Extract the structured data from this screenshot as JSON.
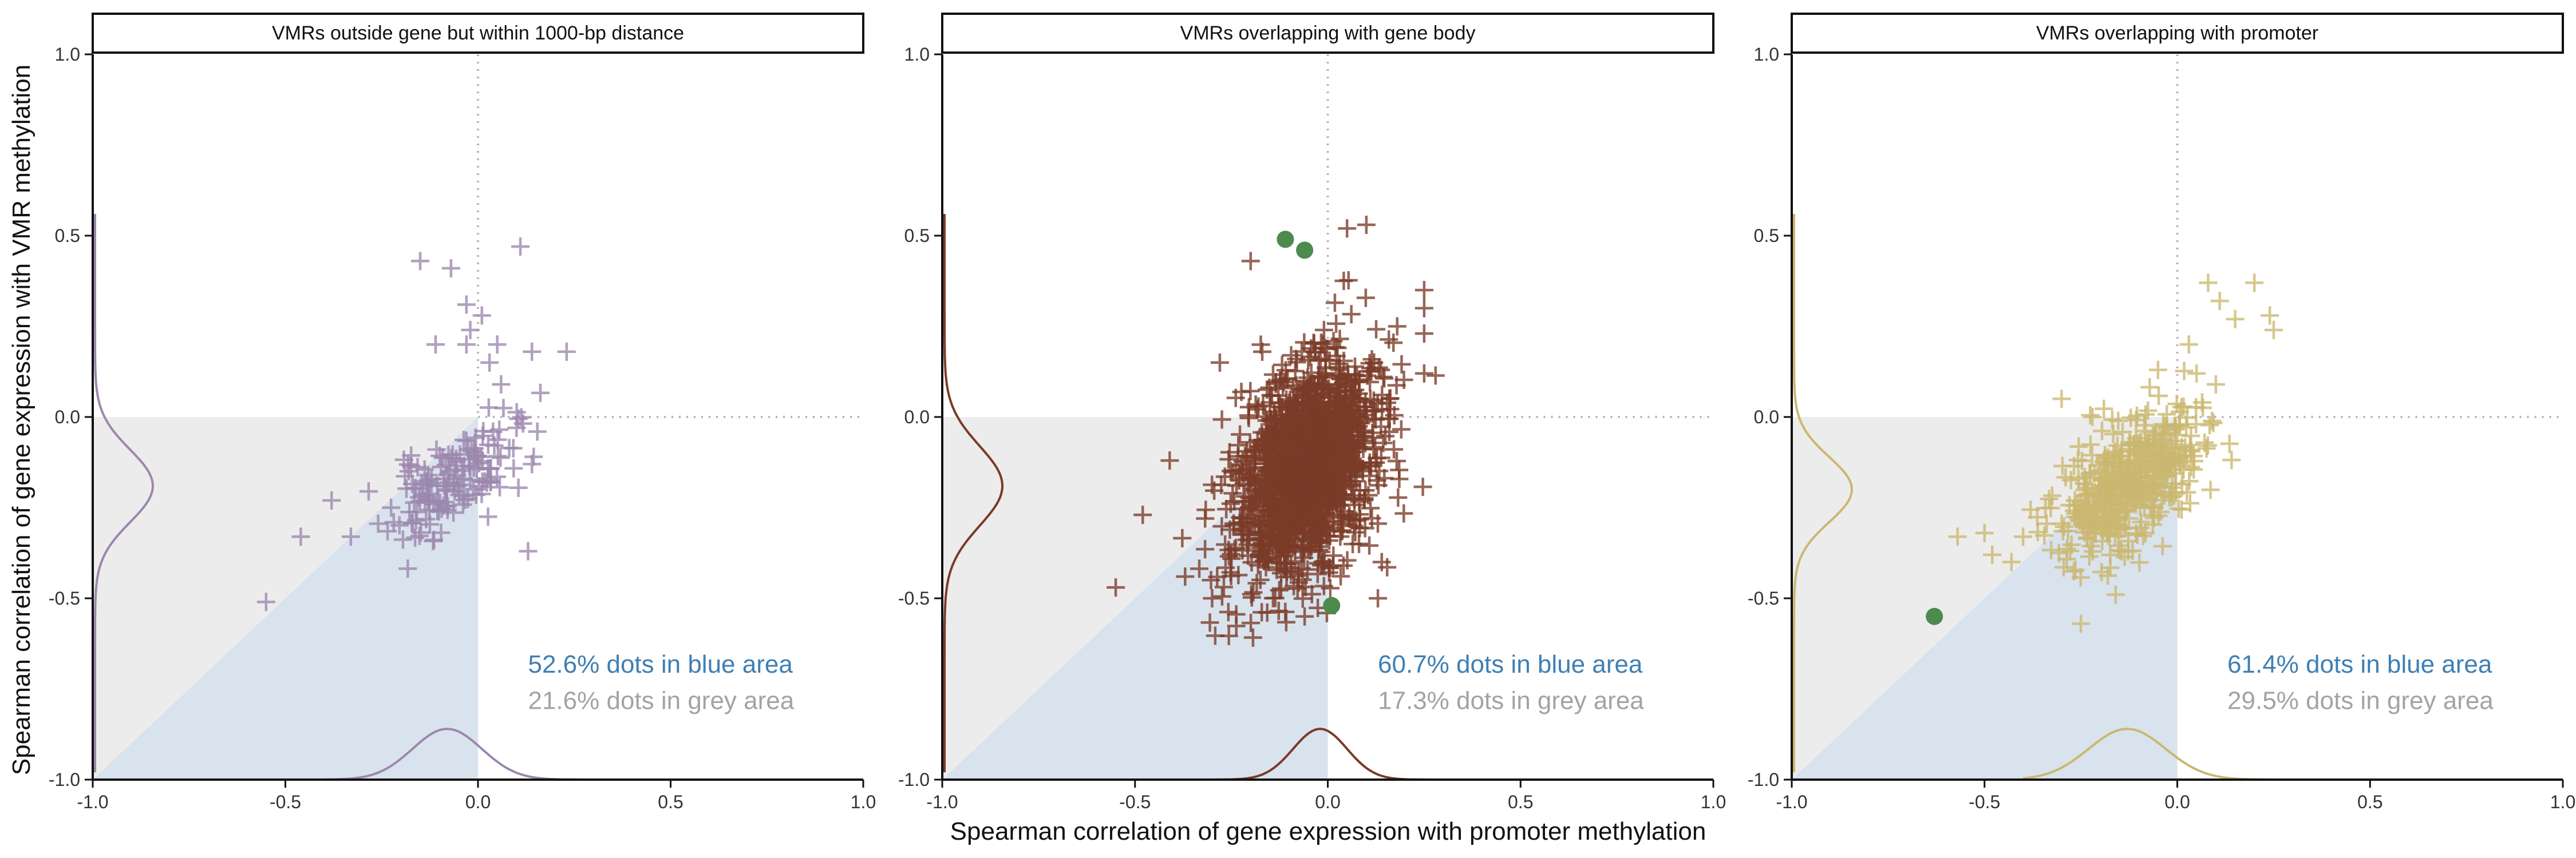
{
  "figure": {
    "ylabel": "Spearman correlation of gene expression with VMR methylation",
    "xlabel": "Spearman correlation of gene expression with promoter methylation"
  },
  "colors": {
    "blue_region": "#d9e3ee",
    "grey_region": "#ececec",
    "blue_text": "#3f7fb3",
    "grey_text": "#a3a3a3",
    "highlight": "#4c8a4e",
    "guide_line": "#b5b5b5"
  },
  "chart_data": [
    {
      "type": "scatter",
      "title": "VMRs outside gene but within 1000-bp distance",
      "xlim": [
        -1.0,
        1.0
      ],
      "ylim": [
        -1.0,
        1.0
      ],
      "xticks": [
        "-1.0",
        "-0.5",
        "0.0",
        "0.5",
        "1.0"
      ],
      "yticks": [
        "-1.0",
        "-0.5",
        "0.0",
        "0.5",
        "1.0"
      ],
      "marker": "plus",
      "color": "#9b87ad",
      "blue_area_text": "52.6% dots in blue area",
      "grey_area_text": "21.6% dots in grey area",
      "points": [
        [
          -0.55,
          -0.51
        ],
        [
          -0.46,
          -0.33
        ],
        [
          -0.15,
          0.43
        ],
        [
          -0.07,
          0.41
        ],
        [
          -0.03,
          0.31
        ],
        [
          0.11,
          0.47
        ],
        [
          0.01,
          0.28
        ],
        [
          0.14,
          0.18
        ],
        [
          0.23,
          0.18
        ],
        [
          -0.11,
          0.2
        ],
        [
          -0.03,
          0.2
        ],
        [
          0.03,
          0.15
        ],
        [
          0.05,
          0.2
        ],
        [
          0.14,
          -0.13
        ],
        [
          0.13,
          -0.37
        ],
        [
          -0.33,
          -0.33
        ],
        [
          -0.38,
          -0.23
        ],
        [
          0.1,
          -0.03
        ],
        [
          -0.02,
          0.24
        ],
        [
          0.06,
          0.09
        ]
      ],
      "cloud": {
        "count": 150,
        "center": [
          -0.07,
          -0.18
        ],
        "spread": [
          0.08,
          0.06
        ],
        "seed": 11
      },
      "highlights": [],
      "y_density": {
        "x_at_peak": -0.85,
        "y_peak": -0.19,
        "sd": 0.1
      },
      "x_density": {
        "y_at_peak": -0.86,
        "x_peak": -0.08,
        "sd": 0.09
      }
    },
    {
      "type": "scatter",
      "title": "VMRs overlapping with gene body",
      "xlim": [
        -1.0,
        1.0
      ],
      "ylim": [
        -1.0,
        1.0
      ],
      "xticks": [
        "-1.0",
        "-0.5",
        "0.0",
        "0.5",
        "1.0"
      ],
      "yticks": [
        "-1.0",
        "-0.5",
        "0.0",
        "0.5",
        "1.0"
      ],
      "marker": "plus",
      "color": "#7a3b28",
      "blue_area_text": "60.7% dots in blue area",
      "grey_area_text": "17.3% dots in grey area",
      "points": [
        [
          -0.28,
          0.15
        ],
        [
          -0.17,
          0.18
        ],
        [
          -0.37,
          -0.44
        ],
        [
          -0.48,
          -0.27
        ],
        [
          -0.55,
          -0.47
        ],
        [
          -0.06,
          -0.55
        ],
        [
          0.13,
          -0.5
        ],
        [
          0.25,
          0.35
        ],
        [
          0.25,
          0.23
        ],
        [
          0.25,
          0.12
        ],
        [
          0.25,
          0.3
        ],
        [
          0.18,
          0.25
        ],
        [
          0.05,
          0.52
        ],
        [
          0.1,
          0.53
        ],
        [
          -0.2,
          0.43
        ],
        [
          0.12,
          0.15
        ],
        [
          0.14,
          -0.4
        ],
        [
          0.16,
          0.05
        ],
        [
          -0.41,
          -0.12
        ],
        [
          -0.3,
          -0.5
        ]
      ],
      "cloud": {
        "count": 1600,
        "center": [
          -0.06,
          -0.15
        ],
        "spread": [
          0.09,
          0.14
        ],
        "seed": 23
      },
      "highlights": [
        [
          -0.11,
          0.49
        ],
        [
          -0.06,
          0.46
        ],
        [
          0.01,
          -0.52
        ]
      ],
      "y_density": {
        "x_at_peak": -0.85,
        "y_peak": -0.19,
        "sd": 0.11
      },
      "x_density": {
        "y_at_peak": -0.86,
        "x_peak": -0.02,
        "sd": 0.07
      }
    },
    {
      "type": "scatter",
      "title": "VMRs overlapping with promoter",
      "xlim": [
        -1.0,
        1.0
      ],
      "ylim": [
        -1.0,
        1.0
      ],
      "xticks": [
        "-1.0",
        "-0.5",
        "0.0",
        "0.5",
        "1.0"
      ],
      "yticks": [
        "-1.0",
        "-0.5",
        "0.0",
        "0.5",
        "1.0"
      ],
      "marker": "plus",
      "color": "#cbb76f",
      "blue_area_text": "61.4% dots in blue area",
      "grey_area_text": "29.5% dots in grey area",
      "points": [
        [
          -0.57,
          -0.33
        ],
        [
          -0.5,
          -0.32
        ],
        [
          -0.48,
          -0.38
        ],
        [
          -0.43,
          -0.4
        ],
        [
          -0.4,
          -0.33
        ],
        [
          -0.3,
          0.05
        ],
        [
          -0.25,
          -0.57
        ],
        [
          0.08,
          0.37
        ],
        [
          0.11,
          0.32
        ],
        [
          0.15,
          0.27
        ],
        [
          0.2,
          0.37
        ],
        [
          0.24,
          0.28
        ],
        [
          0.25,
          0.24
        ],
        [
          0.03,
          0.2
        ],
        [
          0.05,
          0.12
        ],
        [
          0.1,
          0.09
        ],
        [
          -0.05,
          0.13
        ],
        [
          -0.16,
          -0.49
        ],
        [
          0.0,
          -0.05
        ],
        [
          -0.22,
          0.0
        ]
      ],
      "cloud": {
        "count": 500,
        "center": [
          -0.12,
          -0.18
        ],
        "spread": [
          0.09,
          0.08
        ],
        "seed": 37
      },
      "highlights": [
        [
          -0.63,
          -0.55
        ]
      ],
      "y_density": {
        "x_at_peak": -0.85,
        "y_peak": -0.2,
        "sd": 0.09
      },
      "x_density": {
        "y_at_peak": -0.86,
        "x_peak": -0.13,
        "sd": 0.1
      }
    }
  ]
}
